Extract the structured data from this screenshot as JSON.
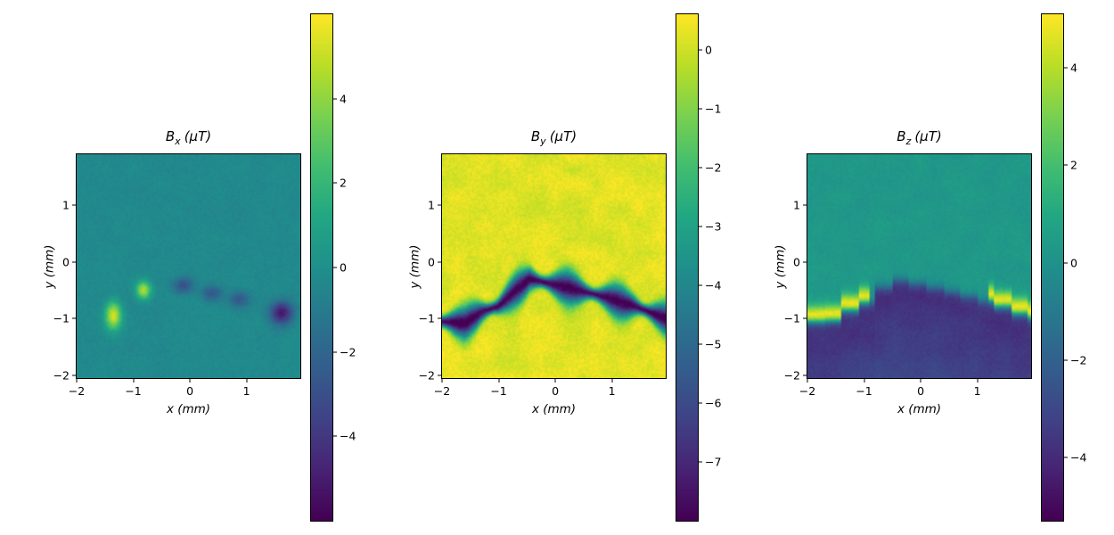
{
  "figure": {
    "background": "#ffffff",
    "colormap": "viridis"
  },
  "chart_data": [
    {
      "type": "heatmap",
      "title": "Bx (µT)",
      "title_parts": {
        "sym": "B",
        "sub": "x",
        "unit": "(µT)"
      },
      "xlabel": "x (mm)",
      "ylabel": "y (mm)",
      "x_range": [
        -2,
        1.95
      ],
      "y_range": [
        -2.05,
        1.9
      ],
      "x_ticks": [
        -2,
        -1,
        0,
        1
      ],
      "y_ticks": [
        1,
        0,
        -1,
        -2
      ],
      "colormap": "viridis",
      "colorbar": {
        "vmin": -6,
        "vmax": 6,
        "ticks": [
          4,
          2,
          0,
          -2,
          -4
        ]
      },
      "field": {
        "kind": "blobs",
        "background": -0.3,
        "noise": 0.5,
        "noise_coarse": 0.15,
        "blobs": [
          {
            "x": -1.35,
            "y": -0.95,
            "sx": 0.1,
            "sy": 0.17,
            "amp": 5.6
          },
          {
            "x": -0.82,
            "y": -0.5,
            "sx": 0.09,
            "sy": 0.11,
            "amp": 5.0
          },
          {
            "x": -0.12,
            "y": -0.42,
            "sx": 0.13,
            "sy": 0.1,
            "amp": -2.6
          },
          {
            "x": 0.38,
            "y": -0.55,
            "sx": 0.13,
            "sy": 0.1,
            "amp": -2.3
          },
          {
            "x": 0.88,
            "y": -0.66,
            "sx": 0.13,
            "sy": 0.1,
            "amp": -2.3
          },
          {
            "x": 1.62,
            "y": -0.9,
            "sx": 0.14,
            "sy": 0.14,
            "amp": -4.9
          }
        ]
      }
    },
    {
      "type": "heatmap",
      "title": "By (µT)",
      "title_parts": {
        "sym": "B",
        "sub": "y",
        "unit": "(µT)"
      },
      "xlabel": "x (mm)",
      "ylabel": "y (mm)",
      "x_range": [
        -2,
        1.95
      ],
      "y_range": [
        -2.05,
        1.9
      ],
      "x_ticks": [
        -2,
        -1,
        0,
        1
      ],
      "y_ticks": [
        1,
        0,
        -1,
        -2
      ],
      "colormap": "viridis",
      "colorbar": {
        "vmin": -8,
        "vmax": 0.6,
        "ticks": [
          0,
          -1,
          -2,
          -3,
          -4,
          -5,
          -6,
          -7
        ]
      },
      "field": {
        "kind": "crack_dip",
        "background": 0.25,
        "noise": 0.5,
        "noise_coarse": 0.3,
        "crack": {
          "points": [
            [
              -2,
              -1.05
            ],
            [
              -1.6,
              -1.08
            ],
            [
              -1.3,
              -0.88
            ],
            [
              -1.0,
              -0.78
            ],
            [
              -0.7,
              -0.5
            ],
            [
              -0.45,
              -0.3
            ],
            [
              -0.1,
              -0.38
            ],
            [
              0.4,
              -0.5
            ],
            [
              0.9,
              -0.62
            ],
            [
              1.4,
              -0.78
            ],
            [
              1.95,
              -1.0
            ]
          ],
          "amp": -8.3,
          "width": 0.13,
          "width_mod": 0.5,
          "width_freq": 7.0
        }
      }
    },
    {
      "type": "heatmap",
      "title": "Bz (µT)",
      "title_parts": {
        "sym": "B",
        "sub": "z",
        "unit": "(µT)"
      },
      "xlabel": "x (mm)",
      "ylabel": "y (mm)",
      "x_range": [
        -2,
        1.95
      ],
      "y_range": [
        -2.05,
        1.9
      ],
      "x_ticks": [
        -2,
        -1,
        0,
        1
      ],
      "y_ticks": [
        1,
        0,
        -1,
        -2
      ],
      "colormap": "viridis",
      "colorbar": {
        "vmin": -5.3,
        "vmax": 5.1,
        "ticks": [
          4,
          2,
          0,
          -2,
          -4
        ]
      },
      "field": {
        "kind": "step",
        "above": 0.3,
        "below_top": -3.9,
        "below_grad": 0.6,
        "edge": 0.05,
        "step_quantize": 0.3,
        "noise": 0.4,
        "noise_coarse": 0.2,
        "crack": {
          "points": [
            [
              -2,
              -1.05
            ],
            [
              -1.6,
              -1.08
            ],
            [
              -1.3,
              -0.88
            ],
            [
              -1.0,
              -0.78
            ],
            [
              -0.7,
              -0.5
            ],
            [
              -0.45,
              -0.3
            ],
            [
              -0.1,
              -0.38
            ],
            [
              0.4,
              -0.5
            ],
            [
              0.9,
              -0.62
            ],
            [
              1.4,
              -0.78
            ],
            [
              1.95,
              -1.0
            ]
          ]
        },
        "lobes": [
          {
            "x_range": [
              -2,
              -0.9
            ],
            "amp": 5.2,
            "width": 0.13,
            "y_offset": 0.1
          },
          {
            "x_range": [
              1.2,
              1.95
            ],
            "amp": 5.2,
            "width": 0.13,
            "y_offset": 0.1
          }
        ]
      }
    }
  ]
}
